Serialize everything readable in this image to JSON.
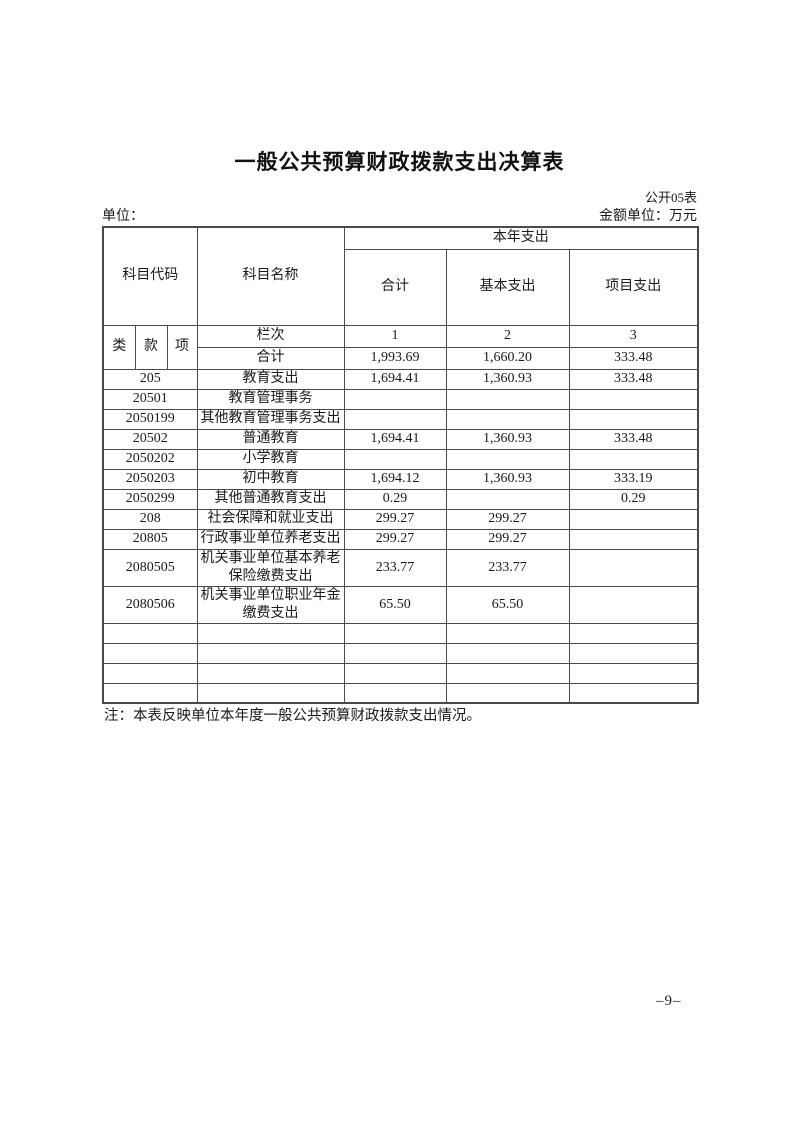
{
  "page": {
    "title": "一般公共预算财政拨款支出决算表",
    "table_code": "公开05表",
    "unit_label": "单位：",
    "amount_unit_label": "金额单位：万元",
    "note": "注：本表反映单位本年度一般公共预算财政拨款支出情况。",
    "page_number": "–9–"
  },
  "table": {
    "header": {
      "subject_code": "科目代码",
      "subject_name": "科目名称",
      "current_year_expenditure": "本年支出",
      "total": "合计",
      "basic_expenditure": "基本支出",
      "project_expenditure": "项目支出",
      "class_label": "类",
      "section_label": "款",
      "item_label": "项",
      "column_index_label": "栏次",
      "column_indices": [
        "1",
        "2",
        "3"
      ]
    },
    "totals": {
      "label": "合计",
      "total": "1,993.69",
      "basic": "1,660.20",
      "project": "333.48"
    },
    "rows": [
      {
        "code": "205",
        "name": "教育支出",
        "total": "1,694.41",
        "basic": "1,360.93",
        "project": "333.48"
      },
      {
        "code": "20501",
        "name": "教育管理事务",
        "total": "",
        "basic": "",
        "project": ""
      },
      {
        "code": "2050199",
        "name": "其他教育管理事务支出",
        "total": "",
        "basic": "",
        "project": ""
      },
      {
        "code": "20502",
        "name": "普通教育",
        "total": "1,694.41",
        "basic": "1,360.93",
        "project": "333.48"
      },
      {
        "code": "2050202",
        "name": "小学教育",
        "total": "",
        "basic": "",
        "project": ""
      },
      {
        "code": "2050203",
        "name": "初中教育",
        "total": "1,694.12",
        "basic": "1,360.93",
        "project": "333.19"
      },
      {
        "code": "2050299",
        "name": "其他普通教育支出",
        "total": "0.29",
        "basic": "",
        "project": "0.29"
      },
      {
        "code": "208",
        "name": "社会保障和就业支出",
        "total": "299.27",
        "basic": "299.27",
        "project": ""
      },
      {
        "code": "20805",
        "name": "行政事业单位养老支出",
        "total": "299.27",
        "basic": "299.27",
        "project": ""
      },
      {
        "code": "2080505",
        "name": "机关事业单位基本养老保险缴费支出",
        "total": "233.77",
        "basic": "233.77",
        "project": ""
      },
      {
        "code": "2080506",
        "name": "机关事业单位职业年金缴费支出",
        "total": "65.50",
        "basic": "65.50",
        "project": ""
      },
      {
        "code": "",
        "name": "",
        "total": "",
        "basic": "",
        "project": ""
      },
      {
        "code": "",
        "name": "",
        "total": "",
        "basic": "",
        "project": ""
      },
      {
        "code": "",
        "name": "",
        "total": "",
        "basic": "",
        "project": ""
      },
      {
        "code": "",
        "name": "",
        "total": "",
        "basic": "",
        "project": ""
      }
    ]
  }
}
